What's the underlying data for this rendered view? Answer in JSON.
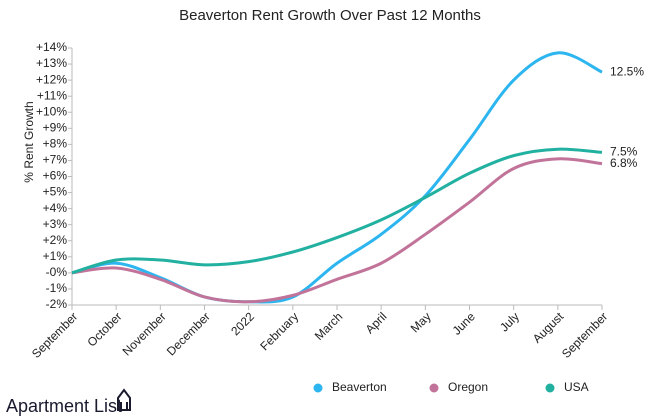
{
  "chart_data": {
    "type": "line",
    "title": "Beaverton Rent Growth Over Past 12 Months",
    "y_label": "% Rent Growth",
    "categories": [
      "September",
      "October",
      "November",
      "December",
      "2022",
      "February",
      "March",
      "April",
      "May",
      "June",
      "July",
      "August",
      "September"
    ],
    "series": [
      {
        "name": "Beaverton",
        "color": "#2cb5ef",
        "values": [
          0,
          0.6,
          -0.3,
          -1.5,
          -1.8,
          -1.5,
          0.6,
          2.4,
          4.8,
          8.3,
          12,
          13.7,
          12.5
        ],
        "value_labels": [
          null,
          null,
          null,
          null,
          null,
          null,
          null,
          null,
          null,
          null,
          null,
          null,
          "12.5%"
        ]
      },
      {
        "name": "Oregon",
        "color": "#c2739a",
        "values": [
          0,
          0.3,
          -0.4,
          -1.5,
          -1.8,
          -1.4,
          -0.4,
          0.6,
          2.4,
          4.4,
          6.5,
          7.1,
          6.8
        ],
        "value_labels": [
          null,
          null,
          null,
          null,
          null,
          null,
          null,
          null,
          null,
          null,
          null,
          null,
          "6.8%"
        ]
      },
      {
        "name": "USA",
        "color": "#22b1a0",
        "values": [
          0,
          0.8,
          0.8,
          0.5,
          0.7,
          1.3,
          2.2,
          3.3,
          4.7,
          6.2,
          7.3,
          7.7,
          7.5
        ],
        "value_labels": [
          null,
          null,
          null,
          null,
          null,
          null,
          null,
          null,
          null,
          null,
          null,
          null,
          "7.5%"
        ]
      }
    ],
    "ylim": [
      -2,
      14
    ],
    "yticks": [
      {
        "value": 14,
        "label": "+14%"
      },
      {
        "value": 13,
        "label": "+13%"
      },
      {
        "value": 12,
        "label": "+12%"
      },
      {
        "value": 11,
        "label": "+11%"
      },
      {
        "value": 10,
        "label": "+10%"
      },
      {
        "value": 9,
        "label": "+9%"
      },
      {
        "value": 8,
        "label": "+8%"
      },
      {
        "value": 7,
        "label": "+7%"
      },
      {
        "value": 6,
        "label": "+6%"
      },
      {
        "value": 5,
        "label": "+5%"
      },
      {
        "value": 4,
        "label": "+4%"
      },
      {
        "value": 3,
        "label": "+3%"
      },
      {
        "value": 2,
        "label": "+2%"
      },
      {
        "value": 1,
        "label": "+1%"
      },
      {
        "value": 0,
        "label": "-0%"
      },
      {
        "value": -1,
        "label": "-1%"
      },
      {
        "value": -2,
        "label": "-2%"
      }
    ],
    "grid": false,
    "legend": "bottom-right"
  },
  "brand": "Apartment List"
}
